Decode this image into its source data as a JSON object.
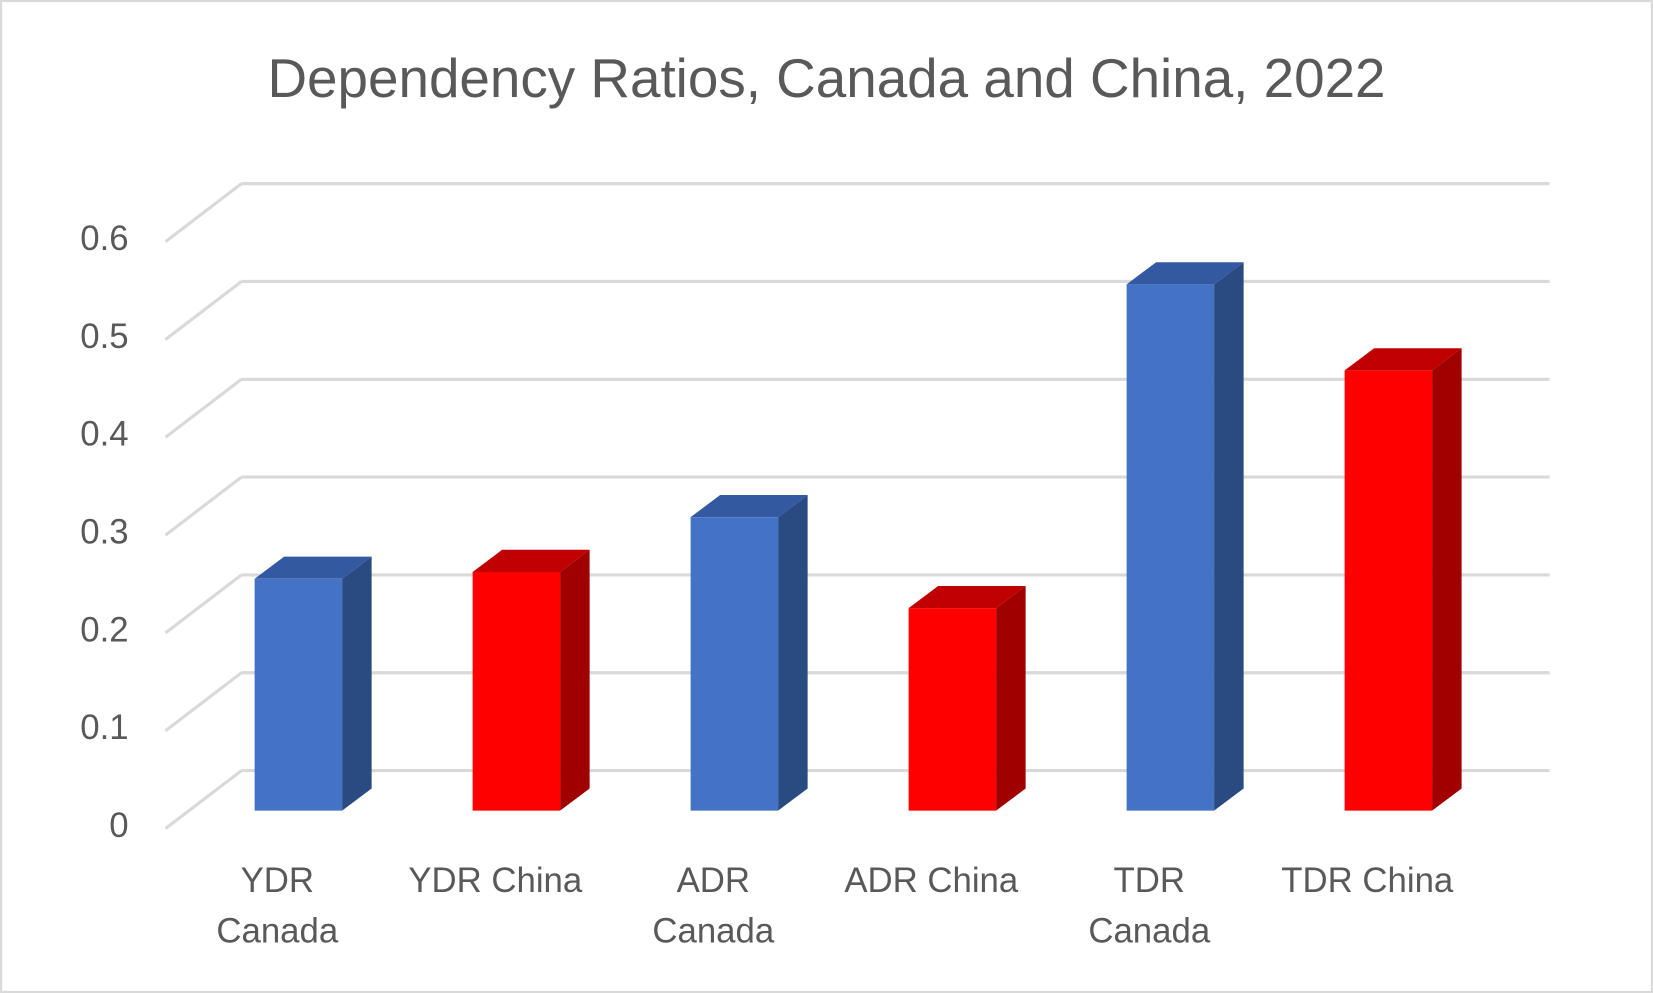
{
  "chart_data": {
    "type": "bar",
    "title": "Dependency Ratios, Canada and China, 2022",
    "xlabel": "",
    "ylabel": "",
    "ylim": [
      0,
      0.6
    ],
    "yticks": [
      "0",
      "0.1",
      "0.2",
      "0.3",
      "0.4",
      "0.5",
      "0.6"
    ],
    "grid": true,
    "legend": "none",
    "categories": [
      [
        "YDR",
        "Canada"
      ],
      [
        "YDR China"
      ],
      [
        "ADR",
        "Canada"
      ],
      [
        "ADR China"
      ],
      [
        "TDR",
        "Canada"
      ],
      [
        "TDR China"
      ]
    ],
    "values": [
      0.237,
      0.244,
      0.3,
      0.207,
      0.538,
      0.45
    ],
    "bar_colors": [
      "#4472C4",
      "#FF0000",
      "#4472C4",
      "#FF0000",
      "#4472C4",
      "#FF0000"
    ],
    "bar_top_colors": [
      "#335AA0",
      "#C00000",
      "#335AA0",
      "#C00000",
      "#335AA0",
      "#C00000"
    ],
    "bar_side_colors": [
      "#2A4A82",
      "#A00000",
      "#2A4A82",
      "#A00000",
      "#2A4A82",
      "#A00000"
    ]
  }
}
